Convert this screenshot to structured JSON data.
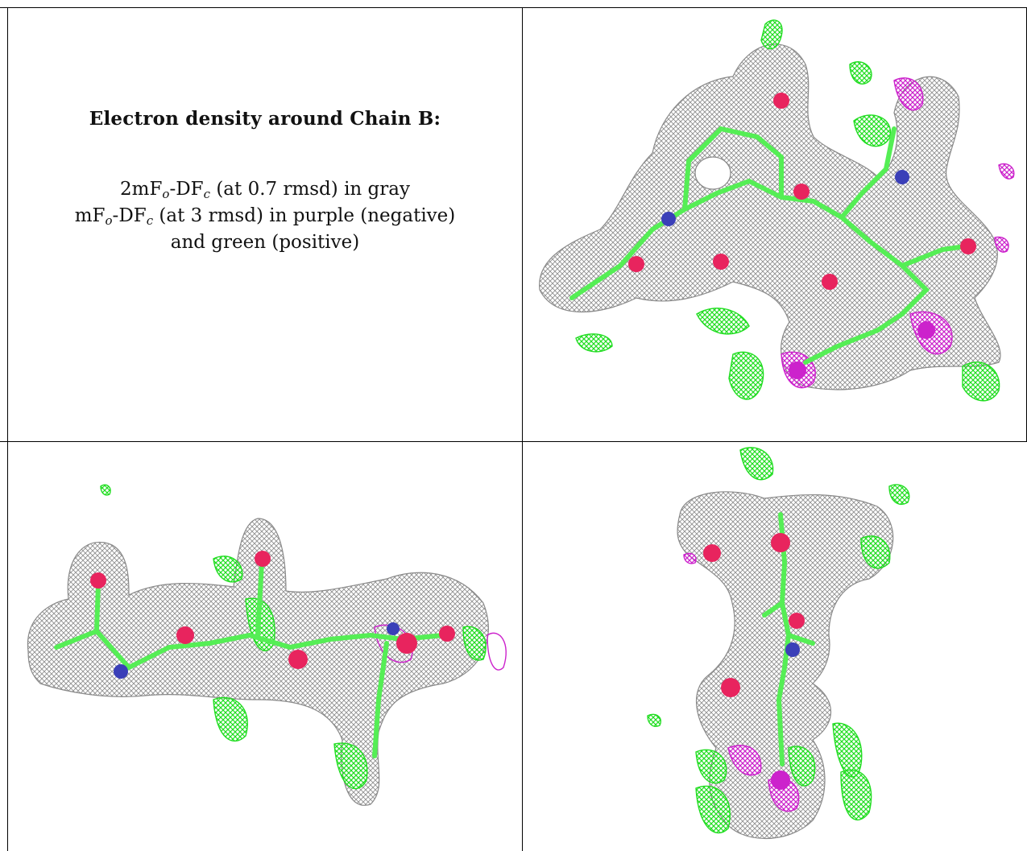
{
  "caption": {
    "title": "Electron density around Chain B:",
    "line1": {
      "a": "2mF",
      "b": "o",
      "c": "-DF",
      "d": "c",
      "e": " (at 0.7 rmsd) in gray"
    },
    "line2": {
      "a": "mF",
      "b": "o",
      "c": "-DF",
      "d": "c",
      "e": " (at 3 rmsd) in purple (negative)"
    },
    "line3": "and green (positive)"
  },
  "colors": {
    "density_2fofc": "#9a9a9a",
    "density_positive": "#22dd22",
    "density_negative": "#cc22cc",
    "carbon": "#55ee55",
    "oxygen": "#e8245e",
    "nitrogen": "#3a3fb8"
  },
  "panels": [
    {
      "name": "density-view-top"
    },
    {
      "name": "density-view-side"
    },
    {
      "name": "density-view-end"
    }
  ]
}
